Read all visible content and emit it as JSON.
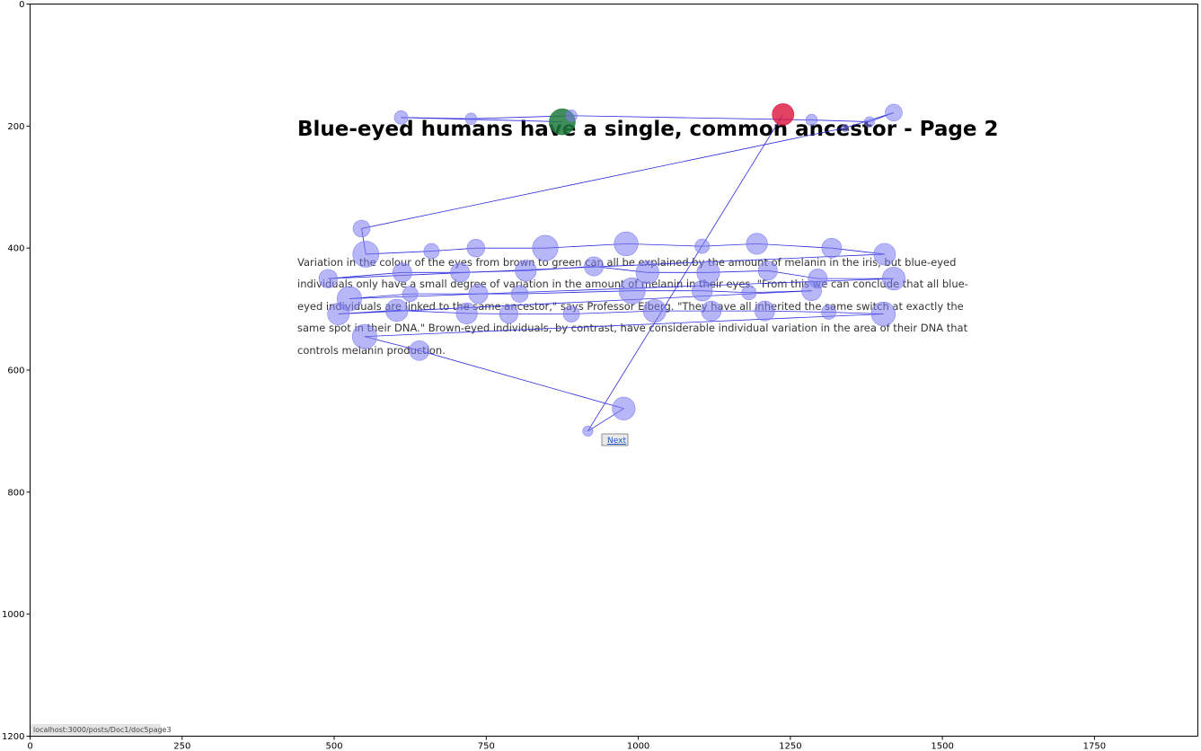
{
  "chart_data": {
    "type": "scatter",
    "title": "",
    "xlabel": "",
    "ylabel": "",
    "xlim": [
      0,
      1920
    ],
    "ylim": [
      1200,
      0
    ],
    "x_ticks": [
      0,
      250,
      500,
      750,
      1000,
      1250,
      1500,
      1750
    ],
    "y_ticks": [
      0,
      200,
      400,
      600,
      800,
      1000,
      1200
    ],
    "grid": false,
    "background_page": {
      "heading": "Blue-eyed humans have a single, common ancestor - Page 2",
      "paragraph_lines": [
        "Variation in the colour of the eyes from brown to green can all be explained by the amount of melanin in the iris, but blue-eyed",
        "individuals only have a small degree of variation in the amount of melanin in their eyes. \"From this we can conclude that all blue-",
        "eyed individuals are linked to the same ancestor,\" says Professor Eiberg. \"They have all inherited the same switch at exactly the",
        "same spot in their DNA.\" Brown-eyed individuals, by contrast, have considerable individual variation in the area of their DNA that",
        "controls melanin production."
      ],
      "next_button": "Next",
      "status_url": "localhost:3000/posts/Doc1/doc5page3"
    },
    "fixation_color": "#7b7bf0",
    "path_color": "#2b2bdf",
    "start_color": "#1e7a3c",
    "end_color": "#dc143c",
    "fixations": [
      {
        "x": 875,
        "y": 193,
        "d": 260,
        "role": "start"
      },
      {
        "x": 610,
        "y": 186,
        "d": 70
      },
      {
        "x": 725,
        "y": 188,
        "d": 50
      },
      {
        "x": 890,
        "y": 183,
        "d": 50
      },
      {
        "x": 1285,
        "y": 190,
        "d": 50
      },
      {
        "x": 1380,
        "y": 193,
        "d": 40
      },
      {
        "x": 1420,
        "y": 178,
        "d": 110
      },
      {
        "x": 1340,
        "y": 203,
        "d": 20
      },
      {
        "x": 545,
        "y": 368,
        "d": 110
      },
      {
        "x": 552,
        "y": 410,
        "d": 260
      },
      {
        "x": 660,
        "y": 405,
        "d": 90
      },
      {
        "x": 733,
        "y": 400,
        "d": 120
      },
      {
        "x": 847,
        "y": 400,
        "d": 250
      },
      {
        "x": 980,
        "y": 393,
        "d": 220
      },
      {
        "x": 1105,
        "y": 397,
        "d": 80
      },
      {
        "x": 1195,
        "y": 393,
        "d": 170
      },
      {
        "x": 1318,
        "y": 400,
        "d": 150
      },
      {
        "x": 1405,
        "y": 410,
        "d": 180
      },
      {
        "x": 490,
        "y": 450,
        "d": 130
      },
      {
        "x": 612,
        "y": 440,
        "d": 140
      },
      {
        "x": 707,
        "y": 440,
        "d": 140
      },
      {
        "x": 815,
        "y": 437,
        "d": 170
      },
      {
        "x": 927,
        "y": 430,
        "d": 140
      },
      {
        "x": 1015,
        "y": 440,
        "d": 200
      },
      {
        "x": 1115,
        "y": 440,
        "d": 200
      },
      {
        "x": 1213,
        "y": 437,
        "d": 140
      },
      {
        "x": 1295,
        "y": 450,
        "d": 140
      },
      {
        "x": 1420,
        "y": 450,
        "d": 200
      },
      {
        "x": 525,
        "y": 483,
        "d": 230
      },
      {
        "x": 625,
        "y": 475,
        "d": 90
      },
      {
        "x": 737,
        "y": 475,
        "d": 140
      },
      {
        "x": 805,
        "y": 475,
        "d": 110
      },
      {
        "x": 990,
        "y": 470,
        "d": 260
      },
      {
        "x": 1105,
        "y": 470,
        "d": 160
      },
      {
        "x": 1182,
        "y": 473,
        "d": 80
      },
      {
        "x": 1285,
        "y": 470,
        "d": 150
      },
      {
        "x": 507,
        "y": 508,
        "d": 180
      },
      {
        "x": 603,
        "y": 502,
        "d": 190
      },
      {
        "x": 718,
        "y": 507,
        "d": 170
      },
      {
        "x": 787,
        "y": 508,
        "d": 130
      },
      {
        "x": 890,
        "y": 508,
        "d": 100
      },
      {
        "x": 1027,
        "y": 503,
        "d": 200
      },
      {
        "x": 1120,
        "y": 503,
        "d": 150
      },
      {
        "x": 1208,
        "y": 503,
        "d": 150
      },
      {
        "x": 1313,
        "y": 505,
        "d": 80
      },
      {
        "x": 1403,
        "y": 508,
        "d": 220
      },
      {
        "x": 550,
        "y": 545,
        "d": 230
      },
      {
        "x": 640,
        "y": 568,
        "d": 150
      },
      {
        "x": 976,
        "y": 663,
        "d": 200
      },
      {
        "x": 917,
        "y": 700,
        "d": 40
      },
      {
        "x": 1238,
        "y": 181,
        "d": 180,
        "role": "end"
      }
    ],
    "scanpath_order": [
      0,
      1,
      2,
      3,
      4,
      5,
      6,
      7,
      8,
      9,
      10,
      11,
      12,
      13,
      14,
      15,
      16,
      17,
      18,
      19,
      20,
      21,
      22,
      23,
      24,
      25,
      26,
      27,
      28,
      29,
      30,
      31,
      32,
      33,
      34,
      35,
      36,
      37,
      38,
      39,
      40,
      41,
      42,
      43,
      44,
      45,
      46,
      47,
      48,
      49,
      50
    ]
  }
}
